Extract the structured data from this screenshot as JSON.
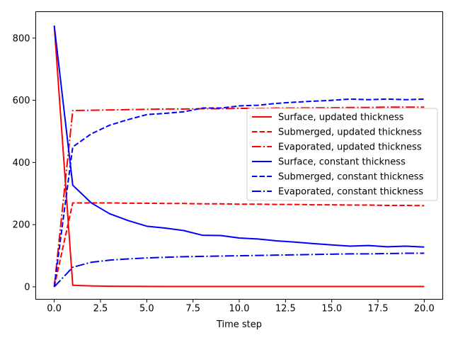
{
  "chart_data": {
    "type": "line",
    "title": "",
    "xlabel": "Time step",
    "ylabel": "",
    "xlim": [
      -1,
      21
    ],
    "ylim": [
      -40,
      885
    ],
    "xticks": [
      0.0,
      2.5,
      5.0,
      7.5,
      10.0,
      12.5,
      15.0,
      17.5,
      20.0
    ],
    "xtick_labels": [
      "0.0",
      "2.5",
      "5.0",
      "7.5",
      "10.0",
      "12.5",
      "15.0",
      "17.5",
      "20.0"
    ],
    "yticks": [
      0,
      200,
      400,
      600,
      800
    ],
    "ytick_labels": [
      "0",
      "200",
      "400",
      "600",
      "800"
    ],
    "grid": false,
    "legend_position": "center-right",
    "x": [
      0,
      1,
      2,
      3,
      4,
      5,
      6,
      7,
      8,
      9,
      10,
      11,
      12,
      13,
      14,
      15,
      16,
      17,
      18,
      19,
      20
    ],
    "series": [
      {
        "name": "Surface, updated thickness",
        "color": "#ff0000",
        "dash": "solid",
        "values": [
          840,
          5,
          3,
          2,
          1.5,
          1.2,
          1,
          1,
          1,
          1,
          1,
          1,
          1,
          1,
          1,
          1,
          1,
          1,
          1,
          1,
          1
        ]
      },
      {
        "name": "Submerged, updated thickness",
        "color": "#ff0000",
        "dash": "dashed",
        "values": [
          0,
          270,
          270,
          270,
          269,
          269,
          268,
          268,
          267,
          267,
          266,
          266,
          265,
          265,
          264,
          264,
          263,
          263,
          262,
          262,
          261
        ]
      },
      {
        "name": "Evaporated, updated thickness",
        "color": "#ff0000",
        "dash": "dashdot",
        "values": [
          0,
          567,
          568,
          569,
          570,
          571,
          572,
          572,
          573,
          573,
          574,
          574,
          575,
          575,
          576,
          576,
          577,
          577,
          578,
          578,
          578
        ]
      },
      {
        "name": "Surface, constant thickness",
        "color": "#0000ff",
        "dash": "solid",
        "values": [
          840,
          327,
          270,
          235,
          213,
          195,
          189,
          181,
          166,
          165,
          157,
          154,
          148,
          144,
          139,
          135,
          131,
          133,
          129,
          131,
          128
        ]
      },
      {
        "name": "Submerged, constant thickness",
        "color": "#0000ff",
        "dash": "dashed",
        "values": [
          0,
          450,
          492,
          520,
          538,
          554,
          558,
          563,
          575,
          575,
          582,
          584,
          590,
          594,
          597,
          600,
          604,
          602,
          604,
          602,
          604
        ]
      },
      {
        "name": "Evaporated, constant thickness",
        "color": "#0000ff",
        "dash": "dashdot",
        "values": [
          0,
          63,
          79,
          86,
          90,
          93,
          95,
          97,
          98,
          99,
          100,
          101,
          102,
          103,
          104,
          105,
          106,
          106,
          107,
          108,
          108
        ]
      }
    ]
  }
}
